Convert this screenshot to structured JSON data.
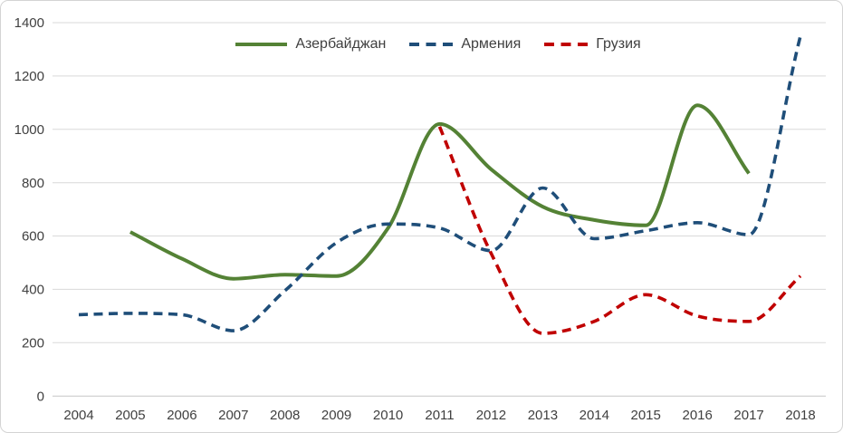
{
  "chart_data": {
    "type": "line",
    "title": "",
    "xlabel": "",
    "ylabel": "",
    "x": [
      2004,
      2005,
      2006,
      2007,
      2008,
      2009,
      2010,
      2011,
      2012,
      2013,
      2014,
      2015,
      2016,
      2017,
      2018
    ],
    "series": [
      {
        "name": "Азербайджан",
        "color": "#548235",
        "style": "solid",
        "values": [
          null,
          615,
          515,
          440,
          455,
          450,
          630,
          1020,
          850,
          710,
          660,
          640,
          1090,
          835,
          null
        ]
      },
      {
        "name": "Армения",
        "color": "#1F4E79",
        "style": "dashed",
        "values": [
          305,
          310,
          305,
          245,
          395,
          575,
          645,
          630,
          545,
          780,
          590,
          620,
          650,
          605,
          1350
        ]
      },
      {
        "name": "Грузия",
        "color": "#C00000",
        "style": "dashed",
        "values": [
          null,
          null,
          null,
          null,
          null,
          null,
          null,
          1010,
          535,
          235,
          280,
          380,
          300,
          280,
          450
        ]
      }
    ],
    "ylim": [
      0,
      1400
    ],
    "yticks": [
      0,
      200,
      400,
      600,
      800,
      1000,
      1200,
      1400
    ],
    "grid": true,
    "smoothed": true,
    "legend_position": "top"
  },
  "colors": {
    "grid": "#D9D9D9",
    "zero_line": "#C6C6C6",
    "tick_label": "#404040",
    "background": "#FFFFFF",
    "frame_border": "#D4D4D4"
  }
}
